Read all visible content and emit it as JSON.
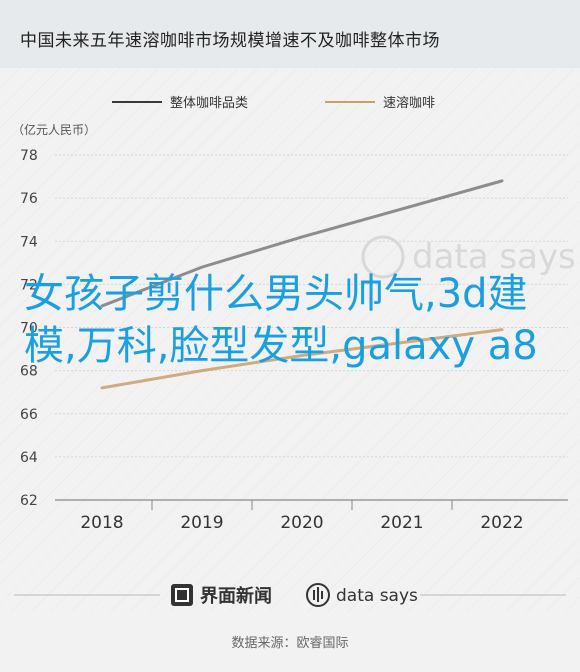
{
  "title": "中国未来五年速溶咖啡市场规模增速不及咖啡整体市场",
  "source": "数据来源：欧睿国际",
  "overlay_text": "女孩子剪什么男头帅气,3d建模,万科,脸型发型,galaxy a8",
  "brand": {
    "logo_text": "界面新闻",
    "datasays_text": "data says",
    "watermark_text": "data says"
  },
  "colors": {
    "line1": "#3a3a3a",
    "line2": "#c9a06a",
    "line1_faded": "#9aa0a6",
    "overlay": "#1a9fe0"
  },
  "chart_data": {
    "type": "line",
    "title": "中国未来五年速溶咖啡市场规模增速不及咖啡整体市场",
    "unit_label": "（亿元人民币）",
    "categories": [
      "2018",
      "2019",
      "2020",
      "2021",
      "2022"
    ],
    "ylim": [
      62,
      78
    ],
    "yticks": [
      62,
      64,
      66,
      68,
      70,
      72,
      74,
      76,
      78
    ],
    "series": [
      {
        "name": "整体咖啡品类",
        "values": [
          71.0,
          72.8,
          74.2,
          75.5,
          76.8
        ]
      },
      {
        "name": "速溶咖啡",
        "values": [
          67.2,
          68.0,
          68.7,
          69.3,
          69.9
        ]
      }
    ],
    "legend_position": "top"
  }
}
